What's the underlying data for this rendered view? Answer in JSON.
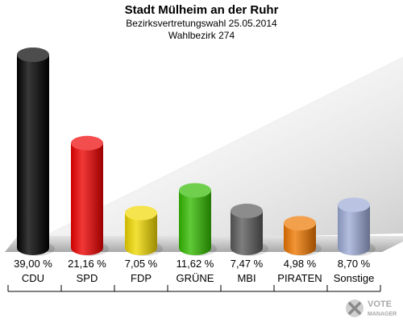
{
  "chart_data": {
    "type": "bar",
    "title": "Stadt Mülheim an der Ruhr",
    "subtitle": "Bezirksvertretungswahl 25.05.2014",
    "subtitle2": "Wahlbezirk 274",
    "categories": [
      "CDU",
      "SPD",
      "FDP",
      "GRÜNE",
      "MBI",
      "PIRATEN",
      "Sonstige"
    ],
    "values": [
      39.0,
      21.16,
      7.05,
      11.62,
      7.47,
      4.98,
      8.7
    ],
    "value_labels": [
      "39,00 %",
      "21,16 %",
      "7,05 %",
      "11,62 %",
      "7,47 %",
      "4,98 %",
      "8,70 %"
    ],
    "colors": [
      "#000000",
      "#ee0000",
      "#f0d800",
      "#33bb00",
      "#5a5a5a",
      "#ee7700",
      "#9daad6"
    ],
    "ylim": [
      0,
      39
    ],
    "grid": false,
    "legend": "none"
  },
  "logo": {
    "line1": "VOTE",
    "line2": "MANAGER"
  }
}
